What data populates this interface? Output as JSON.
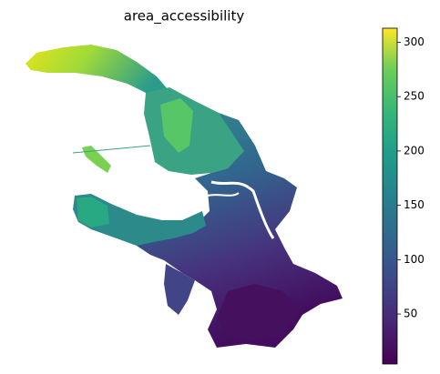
{
  "title": "area_accessibility",
  "colorbar": {
    "lim": [
      4,
      313
    ],
    "ticks": [
      50,
      100,
      150,
      200,
      250,
      300
    ]
  }
}
